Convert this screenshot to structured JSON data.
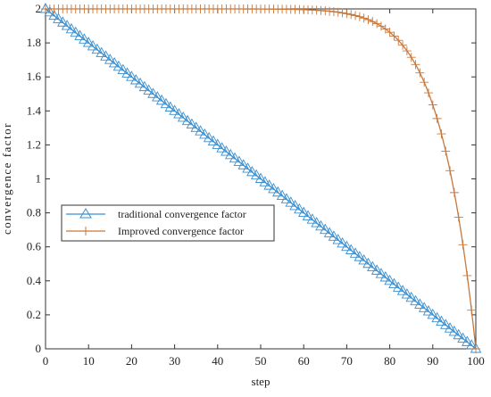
{
  "chart_data": {
    "type": "line",
    "xlabel": "step",
    "ylabel": "convergence factor",
    "xlim": [
      0,
      100
    ],
    "ylim": [
      0,
      2
    ],
    "x_ticks": [
      "0",
      "10",
      "20",
      "30",
      "40",
      "50",
      "60",
      "70",
      "80",
      "90",
      "100"
    ],
    "y_ticks": [
      "0",
      "0.2",
      "0.4",
      "0.6",
      "0.8",
      "1",
      "1.2",
      "1.4",
      "1.6",
      "1.8",
      "2"
    ],
    "legend": {
      "placement": "center-left"
    },
    "grid": false,
    "series": [
      {
        "name": "traditional convergence factor",
        "color": "#3a8fd0",
        "marker": "triangle",
        "formula": "y = 2 - 2x/100",
        "x": [
          0,
          10,
          20,
          30,
          40,
          50,
          60,
          70,
          80,
          90,
          100
        ],
        "y": [
          2.0,
          1.8,
          1.6,
          1.4,
          1.2,
          1.0,
          0.8,
          0.6,
          0.4,
          0.2,
          0.0
        ]
      },
      {
        "name": "Improved convergence factor",
        "color": "#c8783c",
        "marker": "plus",
        "formula": "y = 2 - 2(x/100)^12",
        "x": [
          0,
          10,
          20,
          30,
          40,
          50,
          60,
          70,
          80,
          85,
          90,
          95,
          100
        ],
        "y": [
          2.0,
          2.0,
          2.0,
          2.0,
          2.0,
          2.0,
          1.996,
          1.972,
          1.863,
          1.716,
          1.435,
          0.919,
          0.0
        ]
      }
    ]
  }
}
